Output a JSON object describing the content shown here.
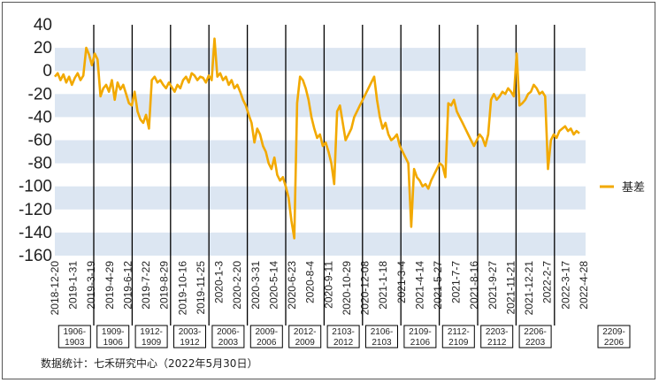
{
  "source_note": "数据统计：七禾研究中心（2022年5月30日）",
  "chart_data": {
    "type": "line",
    "title": "",
    "xlabel": "",
    "ylabel": "",
    "ylim": [
      -160,
      40
    ],
    "yticks": [
      40,
      20,
      0,
      -20,
      -40,
      -60,
      -80,
      -100,
      -120,
      -140,
      -160
    ],
    "x_tick_labels": [
      "2018-12-20",
      "2019-1-31",
      "2019-3-19",
      "2019-4-29",
      "2019-6-12",
      "2019-7-22",
      "2019-8-29",
      "2019-10-16",
      "2019-11-25",
      "2020-1-3",
      "2020-2-20",
      "2020-3-31",
      "2020-5-14",
      "2020-6-23",
      "2020-8-4",
      "2020-9-11",
      "2020-10-29",
      "2020-12-08",
      "2021-1-18",
      "2021-3-4",
      "2021-4-14",
      "2021-5-27",
      "2021-7-7",
      "2021-8-16",
      "2021-9-27",
      "2021-11-21",
      "2021-12-21",
      "2022-2-7",
      "2022-3-17",
      "2022-4-28"
    ],
    "grid": "alternating horizontal bands",
    "legend_position": "right",
    "band_color": "#dce6f2",
    "line_color": "#f2a900",
    "series": [
      {
        "name": "基差",
        "values": [
          -5,
          -2,
          -8,
          -3,
          -10,
          -5,
          -12,
          -6,
          -2,
          -8,
          -4,
          20,
          14,
          5,
          15,
          10,
          -22,
          -15,
          -12,
          -18,
          -8,
          -25,
          -10,
          -16,
          -12,
          -20,
          -28,
          -30,
          -18,
          -35,
          -42,
          -45,
          -38,
          -50,
          -8,
          -5,
          -10,
          -8,
          -12,
          -15,
          -10,
          -14,
          -18,
          -12,
          -15,
          -8,
          -5,
          -10,
          -2,
          -4,
          -8,
          -5,
          -6,
          -10,
          -4,
          -8,
          28,
          -5,
          -2,
          -8,
          -5,
          -12,
          -8,
          -15,
          -12,
          -18,
          -25,
          -30,
          -38,
          -45,
          -62,
          -50,
          -55,
          -65,
          -70,
          -80,
          -85,
          -75,
          -90,
          -95,
          -92,
          -100,
          -110,
          -130,
          -145,
          -28,
          -5,
          -8,
          -15,
          -25,
          -40,
          -50,
          -58,
          -55,
          -65,
          -62,
          -70,
          -80,
          -98,
          -35,
          -30,
          -45,
          -60,
          -55,
          -50,
          -40,
          -35,
          -30,
          -25,
          -20,
          -15,
          -10,
          -5,
          -25,
          -40,
          -50,
          -45,
          -55,
          -60,
          -58,
          -55,
          -65,
          -70,
          -75,
          -80,
          -135,
          -85,
          -92,
          -95,
          -100,
          -98,
          -102,
          -95,
          -90,
          -85,
          -80,
          -82,
          -92,
          -28,
          -30,
          -25,
          -35,
          -40,
          -45,
          -50,
          -55,
          -60,
          -65,
          -60,
          -55,
          -58,
          -65,
          -55,
          -25,
          -20,
          -25,
          -22,
          -18,
          -20,
          -15,
          -18,
          -22,
          15,
          -30,
          -28,
          -25,
          -20,
          -18,
          -12,
          -15,
          -20,
          -18,
          -22,
          -85,
          -60,
          -55,
          -58,
          -52,
          -50,
          -48,
          -52,
          -50,
          -55,
          -52,
          -54
        ]
      }
    ],
    "contract_boxes": [
      {
        "top": "1906-",
        "bottom": "1903"
      },
      {
        "top": "1909-",
        "bottom": "1906"
      },
      {
        "top": "1912-",
        "bottom": "1909"
      },
      {
        "top": "2003-",
        "bottom": "1912"
      },
      {
        "top": "2006-",
        "bottom": "2003"
      },
      {
        "top": "2009-",
        "bottom": "2006"
      },
      {
        "top": "2012-",
        "bottom": "2009"
      },
      {
        "top": "2103-",
        "bottom": "2012"
      },
      {
        "top": "2106-",
        "bottom": "2103"
      },
      {
        "top": "2109-",
        "bottom": "2106"
      },
      {
        "top": "2112-",
        "bottom": "2109"
      },
      {
        "top": "2203-",
        "bottom": "2112"
      },
      {
        "top": "2206-",
        "bottom": "2203"
      },
      {
        "top": "2209-",
        "bottom": "2206"
      }
    ]
  }
}
